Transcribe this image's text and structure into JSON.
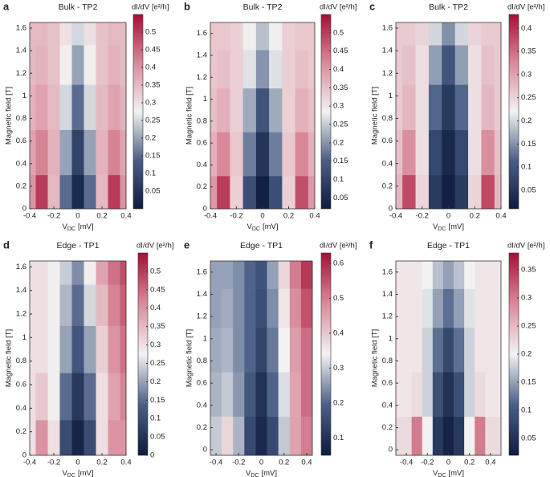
{
  "chart_data": [
    {
      "type": "heatmap",
      "panel": "a",
      "title": "Bulk - TP2",
      "xlabel_parts": [
        "V",
        "DC",
        "[mV]"
      ],
      "ylabel": "Magnetic field [T]",
      "colorbar_label": "dI/dV [e²/h]",
      "x": [
        -0.4,
        -0.3,
        -0.2,
        -0.1,
        0,
        0.1,
        0.2,
        0.3,
        0.4
      ],
      "y": [
        0.1,
        0.5,
        0.9,
        1.3,
        1.6
      ],
      "z": [
        [
          0.4,
          0.5,
          0.35,
          0.15,
          0.03,
          0.15,
          0.35,
          0.5,
          0.4
        ],
        [
          0.38,
          0.42,
          0.36,
          0.2,
          0.08,
          0.2,
          0.36,
          0.42,
          0.38
        ],
        [
          0.36,
          0.38,
          0.35,
          0.25,
          0.15,
          0.25,
          0.35,
          0.38,
          0.36
        ],
        [
          0.35,
          0.36,
          0.34,
          0.28,
          0.2,
          0.28,
          0.34,
          0.36,
          0.35
        ],
        [
          0.35,
          0.35,
          0.34,
          0.3,
          0.25,
          0.3,
          0.34,
          0.35,
          0.35
        ]
      ],
      "xlim": [
        -0.4,
        0.4
      ],
      "xticks": [
        -0.4,
        -0.2,
        0,
        0.2,
        0.4
      ],
      "ylim": [
        0,
        1.65
      ],
      "yticks": [
        0,
        0.2,
        0.4,
        0.6,
        0.8,
        1,
        1.2,
        1.4,
        1.6
      ],
      "clim": [
        0,
        0.55
      ],
      "cticks": [
        0.05,
        0.1,
        0.15,
        0.2,
        0.25,
        0.3,
        0.35,
        0.4,
        0.45,
        0.5
      ]
    },
    {
      "type": "heatmap",
      "panel": "b",
      "title": "Bulk - TP2",
      "xlabel_parts": [
        "V",
        "DC",
        "[mV]"
      ],
      "ylabel": "Magnetic field [T]",
      "colorbar_label": "dI/dV [e²/h]",
      "x": [
        -0.4,
        -0.3,
        -0.2,
        -0.1,
        0,
        0.1,
        0.2,
        0.3,
        0.4
      ],
      "y": [
        0.1,
        0.5,
        0.9,
        1.3,
        1.6
      ],
      "z": [
        [
          0.4,
          0.5,
          0.33,
          0.12,
          0.03,
          0.12,
          0.33,
          0.48,
          0.4
        ],
        [
          0.37,
          0.42,
          0.34,
          0.18,
          0.07,
          0.18,
          0.34,
          0.42,
          0.37
        ],
        [
          0.35,
          0.37,
          0.33,
          0.22,
          0.13,
          0.22,
          0.33,
          0.37,
          0.35
        ],
        [
          0.34,
          0.35,
          0.33,
          0.27,
          0.2,
          0.27,
          0.33,
          0.35,
          0.34
        ],
        [
          0.34,
          0.34,
          0.33,
          0.29,
          0.24,
          0.29,
          0.33,
          0.34,
          0.34
        ]
      ],
      "xlim": [
        -0.4,
        0.4
      ],
      "xticks": [
        -0.4,
        -0.2,
        0,
        0.2,
        0.4
      ],
      "ylim": [
        0,
        1.7
      ],
      "yticks": [
        0,
        0.2,
        0.4,
        0.6,
        0.8,
        1,
        1.2,
        1.4,
        1.6
      ],
      "clim": [
        0.02,
        0.55
      ],
      "cticks": [
        0.05,
        0.1,
        0.15,
        0.2,
        0.25,
        0.3,
        0.35,
        0.4,
        0.45,
        0.5
      ]
    },
    {
      "type": "heatmap",
      "panel": "c",
      "title": "Bulk - TP2",
      "xlabel_parts": [
        "V",
        "DC",
        "[mV]"
      ],
      "ylabel": "Magnetic field [T]",
      "colorbar_label": "dI/dV [e²/h]",
      "x": [
        -0.4,
        -0.3,
        -0.2,
        -0.1,
        0,
        0.1,
        0.2,
        0.3,
        0.4
      ],
      "y": [
        0.1,
        0.5,
        0.9,
        1.3,
        1.6
      ],
      "z": [
        [
          0.28,
          0.38,
          0.25,
          0.06,
          0.02,
          0.06,
          0.25,
          0.38,
          0.28
        ],
        [
          0.27,
          0.32,
          0.24,
          0.08,
          0.03,
          0.08,
          0.24,
          0.32,
          0.27
        ],
        [
          0.26,
          0.28,
          0.24,
          0.12,
          0.06,
          0.12,
          0.24,
          0.28,
          0.26
        ],
        [
          0.26,
          0.27,
          0.24,
          0.16,
          0.1,
          0.16,
          0.24,
          0.27,
          0.26
        ],
        [
          0.26,
          0.26,
          0.25,
          0.2,
          0.15,
          0.2,
          0.25,
          0.26,
          0.26
        ]
      ],
      "xlim": [
        -0.4,
        0.4
      ],
      "xticks": [
        -0.4,
        -0.2,
        0,
        0.2,
        0.4
      ],
      "ylim": [
        0,
        1.65
      ],
      "yticks": [
        0,
        0.2,
        0.4,
        0.6,
        0.8,
        1,
        1.2,
        1.4,
        1.6
      ],
      "clim": [
        0.01,
        0.43
      ],
      "cticks": [
        0.05,
        0.1,
        0.15,
        0.2,
        0.25,
        0.3,
        0.35,
        0.4
      ]
    },
    {
      "type": "heatmap",
      "panel": "d",
      "title": "Edge - TP1",
      "xlabel_parts": [
        "V",
        "DC",
        "[mV]"
      ],
      "ylabel": "Magnetic field [T]",
      "colorbar_label": "dI/dV [e²/h]",
      "x": [
        -0.4,
        -0.3,
        -0.2,
        -0.1,
        0,
        0.1,
        0.2,
        0.3,
        0.4
      ],
      "y": [
        0.1,
        0.5,
        0.9,
        1.3,
        1.6
      ],
      "z": [
        [
          0.3,
          0.4,
          0.3,
          0.1,
          0.02,
          0.1,
          0.3,
          0.4,
          0.4
        ],
        [
          0.3,
          0.33,
          0.28,
          0.15,
          0.06,
          0.15,
          0.3,
          0.38,
          0.42
        ],
        [
          0.3,
          0.3,
          0.28,
          0.2,
          0.12,
          0.2,
          0.32,
          0.4,
          0.44
        ],
        [
          0.3,
          0.3,
          0.28,
          0.22,
          0.15,
          0.25,
          0.35,
          0.42,
          0.46
        ],
        [
          0.3,
          0.3,
          0.28,
          0.24,
          0.18,
          0.28,
          0.38,
          0.44,
          0.48
        ]
      ],
      "xlim": [
        -0.4,
        0.4
      ],
      "xticks": [
        -0.4,
        -0.2,
        0,
        0.2,
        0.4
      ],
      "ylim": [
        0,
        1.65
      ],
      "yticks": [
        0,
        0.2,
        0.4,
        0.6,
        0.8,
        1,
        1.2,
        1.4,
        1.6
      ],
      "clim": [
        0,
        0.55
      ],
      "cticks": [
        0,
        0.05,
        0.1,
        0.15,
        0.2,
        0.25,
        0.3,
        0.35,
        0.4,
        0.45,
        0.5
      ]
    },
    {
      "type": "heatmap",
      "panel": "e",
      "title": "Edge - TP1",
      "xlabel_parts": [
        "V",
        "DC",
        "[mV]"
      ],
      "ylabel": "Magnetic field [T]",
      "colorbar_label": "dI/dV [e²/h]",
      "x": [
        -0.4,
        -0.3,
        -0.2,
        -0.1,
        0,
        0.1,
        0.2,
        0.3,
        0.4
      ],
      "y": [
        0.1,
        0.5,
        0.9,
        1.3,
        1.6
      ],
      "z": [
        [
          0.3,
          0.38,
          0.28,
          0.15,
          0.08,
          0.15,
          0.3,
          0.45,
          0.5
        ],
        [
          0.28,
          0.3,
          0.25,
          0.18,
          0.1,
          0.2,
          0.32,
          0.45,
          0.52
        ],
        [
          0.27,
          0.28,
          0.24,
          0.2,
          0.14,
          0.22,
          0.34,
          0.46,
          0.52
        ],
        [
          0.26,
          0.27,
          0.24,
          0.2,
          0.16,
          0.24,
          0.36,
          0.48,
          0.55
        ],
        [
          0.26,
          0.26,
          0.24,
          0.2,
          0.17,
          0.26,
          0.38,
          0.5,
          0.58
        ]
      ],
      "xlim": [
        -0.45,
        0.45
      ],
      "xticks": [
        -0.4,
        -0.2,
        0,
        0.2,
        0.4
      ],
      "ylim": [
        -0.05,
        1.7
      ],
      "yticks": [
        0,
        0.2,
        0.4,
        0.6,
        0.8,
        1,
        1.2,
        1.4,
        1.6
      ],
      "clim": [
        0.05,
        0.63
      ],
      "cticks": [
        0.1,
        0.2,
        0.3,
        0.4,
        0.5,
        0.6
      ]
    },
    {
      "type": "heatmap",
      "panel": "f",
      "title": "Edge - TP1",
      "xlabel_parts": [
        "V",
        "DC",
        "[mV]"
      ],
      "ylabel": "Magnetic field [T]",
      "colorbar_label": "dI/dV [e²/h]",
      "x": [
        -0.4,
        -0.3,
        -0.2,
        -0.1,
        0,
        0.1,
        0.2,
        0.3,
        0.4
      ],
      "y": [
        0.1,
        0.5,
        0.9,
        1.3,
        1.6
      ],
      "z": [
        [
          0.22,
          0.3,
          0.2,
          0.06,
          0.03,
          0.06,
          0.2,
          0.3,
          0.22
        ],
        [
          0.21,
          0.22,
          0.18,
          0.09,
          0.05,
          0.09,
          0.18,
          0.22,
          0.21
        ],
        [
          0.21,
          0.21,
          0.18,
          0.12,
          0.08,
          0.12,
          0.18,
          0.21,
          0.21
        ],
        [
          0.21,
          0.21,
          0.19,
          0.15,
          0.12,
          0.15,
          0.19,
          0.21,
          0.21
        ],
        [
          0.21,
          0.21,
          0.2,
          0.17,
          0.15,
          0.17,
          0.2,
          0.21,
          0.21
        ]
      ],
      "xlim": [
        -0.5,
        0.5
      ],
      "xticks": [
        -0.4,
        -0.2,
        0,
        0.2,
        0.4
      ],
      "ylim": [
        -0.05,
        1.7
      ],
      "yticks": [
        0,
        0.2,
        0.4,
        0.6,
        0.8,
        1,
        1.2,
        1.4,
        1.6
      ],
      "clim": [
        0.02,
        0.38
      ],
      "cticks": [
        0.05,
        0.1,
        0.15,
        0.2,
        0.25,
        0.3,
        0.35
      ]
    }
  ]
}
